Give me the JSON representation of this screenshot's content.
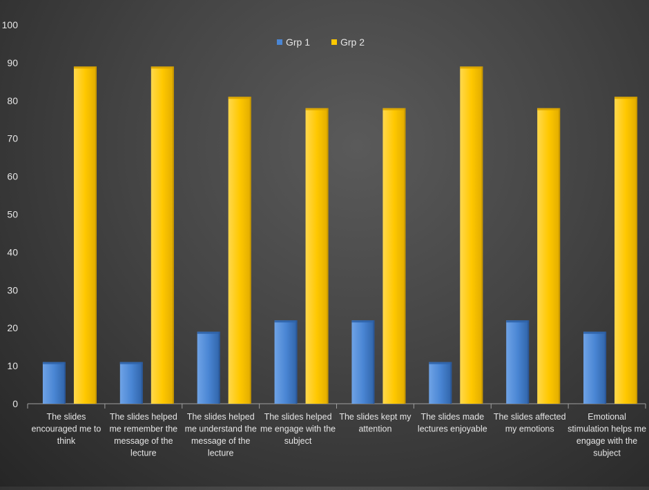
{
  "colors": {
    "grp1": "#4a86d4",
    "grp1_dark": "#2f63a8",
    "grp2": "#ffc800",
    "grp2_dark": "#d9a400",
    "axis": "#a0a0a0",
    "text": "#e6e6e6"
  },
  "chart_data": {
    "type": "bar",
    "title": "",
    "xlabel": "",
    "ylabel": "",
    "ylim": [
      0,
      100
    ],
    "yticks": [
      0,
      10,
      20,
      30,
      40,
      50,
      60,
      70,
      80,
      90,
      100
    ],
    "grid": false,
    "legend_position": "top-center",
    "categories": [
      [
        "The slides",
        "encouraged me to",
        "think"
      ],
      [
        "The slides helped",
        "me remember the",
        "message of the",
        "lecture"
      ],
      [
        "The slides helped",
        "me understand the",
        "message of the",
        "lecture"
      ],
      [
        "The slides helped",
        "me engage with the",
        "subject"
      ],
      [
        "The slides kept my",
        "attention"
      ],
      [
        "The slides made",
        "lectures enjoyable"
      ],
      [
        "The slides affected",
        "my emotions"
      ],
      [
        "Emotional",
        "stimulation helps me",
        "engage with the",
        "subject"
      ]
    ],
    "series": [
      {
        "name": "Grp 1",
        "values": [
          11,
          11,
          19,
          22,
          22,
          11,
          22,
          19
        ]
      },
      {
        "name": "Grp 2",
        "values": [
          89,
          89,
          81,
          78,
          78,
          89,
          78,
          81
        ]
      }
    ]
  }
}
